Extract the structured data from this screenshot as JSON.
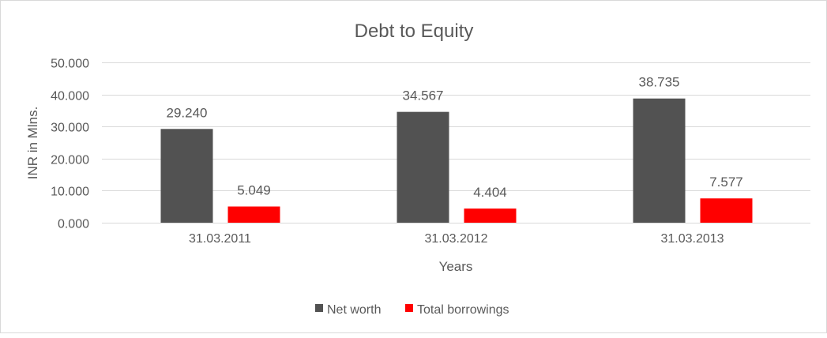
{
  "chart_data": {
    "type": "bar",
    "title": "Debt to Equity",
    "xlabel": "Years",
    "ylabel": "INR in Mlns.",
    "categories": [
      "31.03.2011",
      "31.03.2012",
      "31.03.2013"
    ],
    "series": [
      {
        "name": "Net worth",
        "values": [
          29.24,
          34.567,
          38.735
        ],
        "labels": [
          "29.240",
          "34.567",
          "38.735"
        ],
        "color": "#525252"
      },
      {
        "name": "Total borrowings",
        "values": [
          5.049,
          4.404,
          7.577
        ],
        "labels": [
          "5.049",
          "4.404",
          "7.577"
        ],
        "color": "#ff0000"
      }
    ],
    "ylim": [
      0,
      50
    ],
    "yticks": [
      "0.000",
      "10.000",
      "20.000",
      "30.000",
      "40.000",
      "50.000"
    ],
    "grid": true,
    "legend": "bottom"
  }
}
